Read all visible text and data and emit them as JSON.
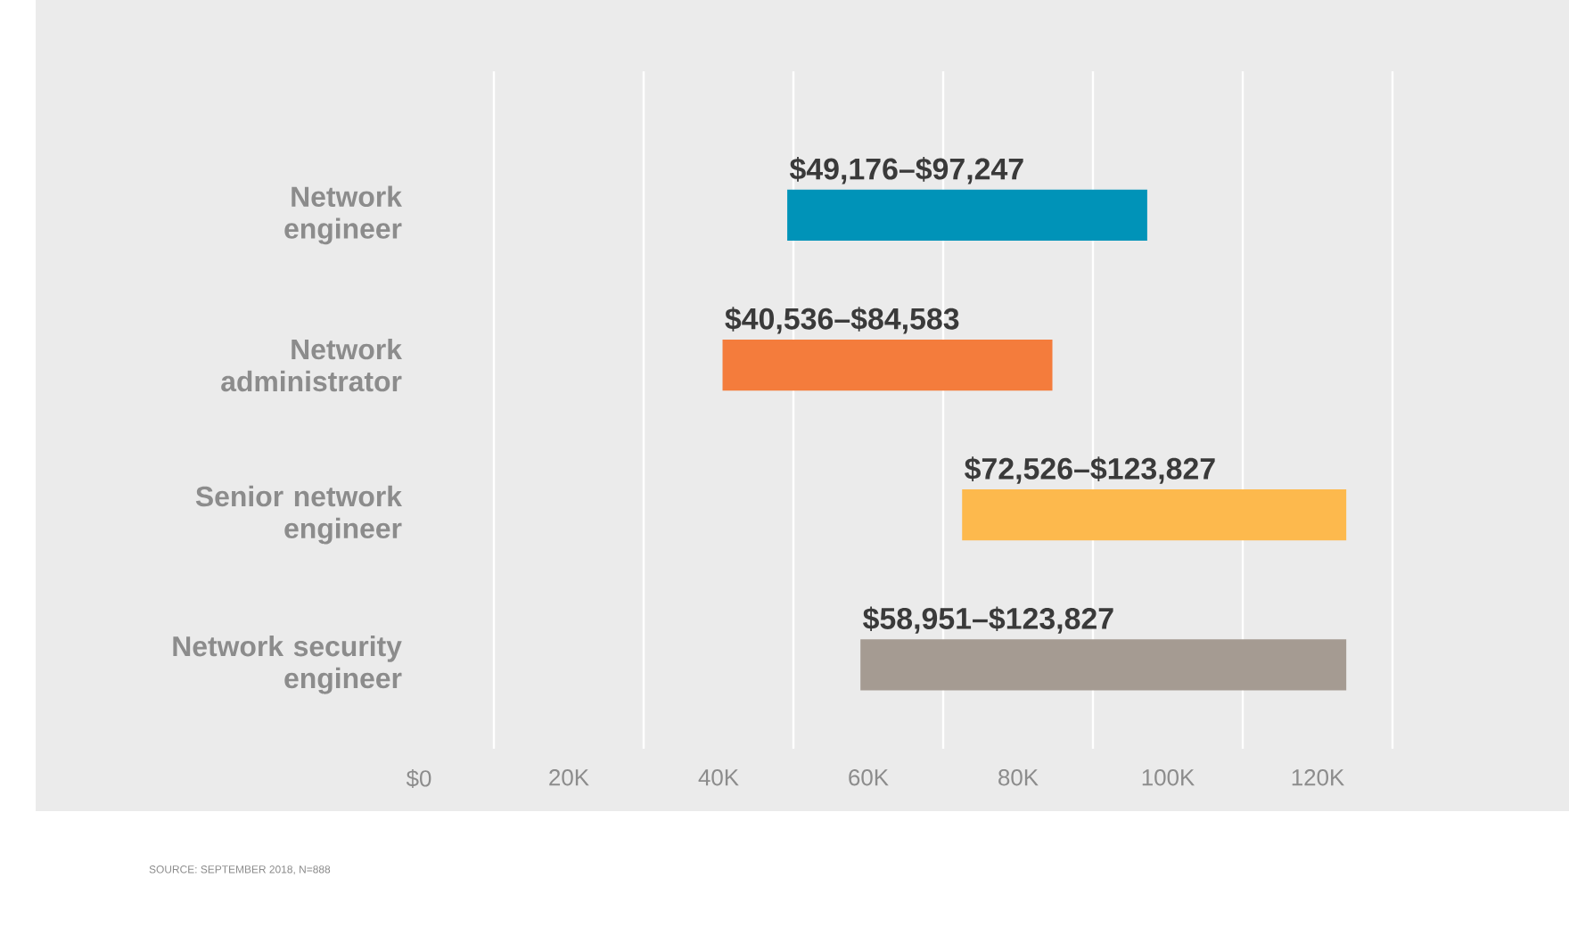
{
  "chart_data": {
    "type": "bar",
    "orientation": "horizontal",
    "categories": [
      "Network engineer",
      "Network administrator",
      "Senior network engineer",
      "Network security engineer"
    ],
    "base": [
      49176,
      40536,
      72526,
      58951
    ],
    "values": [
      48071,
      44047,
      51301,
      64876
    ],
    "colors": [
      "#0093b8",
      "#f47c3c",
      "#fdb94d",
      "#a59b92"
    ],
    "value_labels": [
      "$49,176–$97,247",
      "$40,536–$84,583",
      "$72,526–$123,827",
      "$58,951–$123,827"
    ],
    "xlim": [
      0,
      130000
    ],
    "grid": "x",
    "xticks": [
      {
        "value": 0,
        "label": "$0"
      },
      {
        "value": 20000,
        "label": "20K"
      },
      {
        "value": 40000,
        "label": "40K"
      },
      {
        "value": 60000,
        "label": "60K"
      },
      {
        "value": 80000,
        "label": "80K"
      },
      {
        "value": 100000,
        "label": "100K"
      },
      {
        "value": 120000,
        "label": "120K"
      },
      {
        "value": 10000,
        "label": null
      },
      {
        "value": 30000,
        "label": null
      },
      {
        "value": 50000,
        "label": null
      },
      {
        "value": 70000,
        "label": null
      },
      {
        "value": 90000,
        "label": null
      },
      {
        "value": 110000,
        "label": null
      },
      {
        "value": 130000,
        "label": null
      }
    ],
    "annotations": [
      "SOURCE: SEPTEMBER 2018, N=888"
    ]
  }
}
